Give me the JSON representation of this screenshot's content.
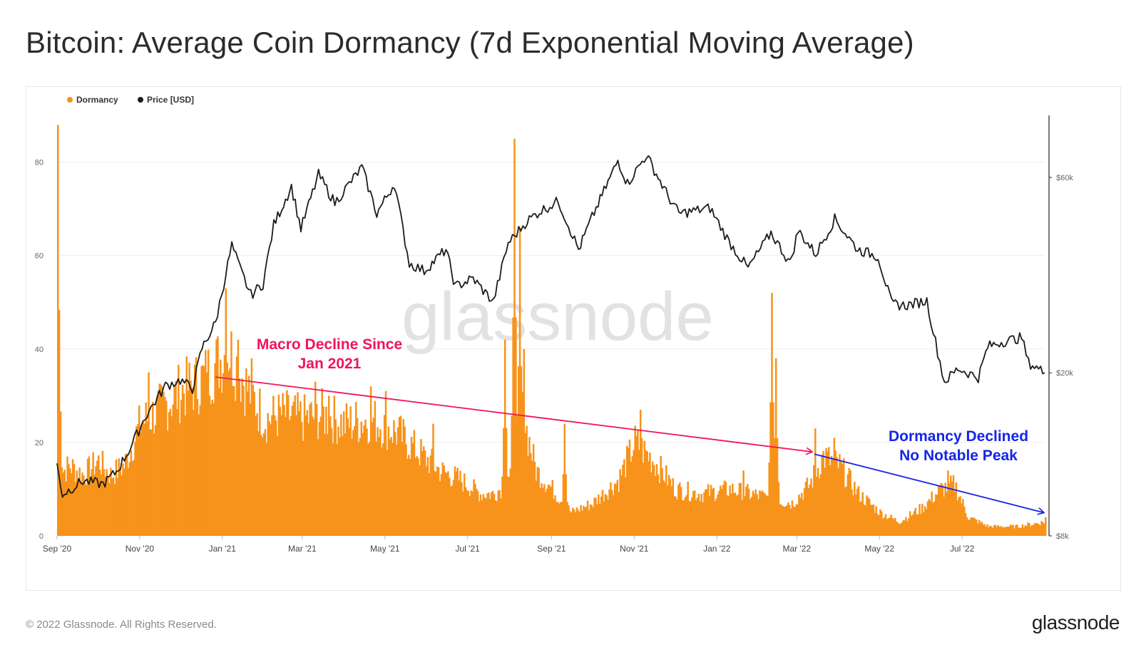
{
  "page": {
    "title": "Bitcoin: Average Coin Dormancy (7d Exponential Moving Average)",
    "copyright": "© 2022 Glassnode. All Rights Reserved.",
    "brand": "glassnode",
    "watermark": "glassnode"
  },
  "colors": {
    "dormancy": "#F7931A",
    "price": "#1c1c1c",
    "annotation_red": "#F0145A",
    "annotation_blue": "#1525E8",
    "grid": "#eeeeee",
    "axis_text": "#666666",
    "watermark": "#e2e2e2"
  },
  "chart_data": {
    "type": "bar",
    "legend": [
      {
        "name": "Dormancy",
        "color": "#F7931A"
      },
      {
        "name": "Price [USD]",
        "color": "#1c1c1c"
      }
    ],
    "legend_position": "top-left",
    "x_ticks": [
      "Sep '20",
      "Nov '20",
      "Jan '21",
      "Mar '21",
      "May '21",
      "Jul '21",
      "Sep '21",
      "Nov '21",
      "Jan '22",
      "Mar '22",
      "May '22",
      "Jul '22"
    ],
    "x_range": [
      "2020-09-01",
      "2022-08-31"
    ],
    "y_left": {
      "label": "",
      "ticks": [
        "0",
        "20",
        "40",
        "60",
        "80"
      ],
      "range": [
        0,
        90
      ]
    },
    "y_right": {
      "label": "",
      "scale": "log",
      "ticks": [
        "$8k",
        "$20k",
        "$60k"
      ],
      "tick_values": [
        8000,
        20000,
        60000
      ],
      "range": [
        8000,
        85000
      ]
    },
    "grid": true,
    "series": [
      {
        "name": "Dormancy",
        "axis": "left",
        "kind": "bar",
        "anchors": [
          [
            "2020-09-01",
            13
          ],
          [
            "2020-09-10",
            15
          ],
          [
            "2020-09-20",
            13
          ],
          [
            "2020-10-01",
            16
          ],
          [
            "2020-10-10",
            13
          ],
          [
            "2020-10-20",
            15
          ],
          [
            "2020-11-01",
            24
          ],
          [
            "2020-11-15",
            27
          ],
          [
            "2020-12-01",
            31
          ],
          [
            "2020-12-15",
            33
          ],
          [
            "2020-12-25",
            36
          ],
          [
            "2021-01-05",
            40
          ],
          [
            "2021-01-20",
            31
          ],
          [
            "2021-02-01",
            25
          ],
          [
            "2021-02-15",
            26
          ],
          [
            "2021-03-01",
            25
          ],
          [
            "2021-03-15",
            26
          ],
          [
            "2021-04-01",
            24
          ],
          [
            "2021-04-20",
            25
          ],
          [
            "2021-05-10",
            22
          ],
          [
            "2021-05-25",
            18
          ],
          [
            "2021-06-10",
            14
          ],
          [
            "2021-06-25",
            12
          ],
          [
            "2021-07-10",
            9
          ],
          [
            "2021-07-20",
            9
          ],
          [
            "2021-08-01",
            12
          ],
          [
            "2021-08-10",
            26
          ],
          [
            "2021-08-20",
            14
          ],
          [
            "2021-09-01",
            10
          ],
          [
            "2021-09-15",
            5
          ],
          [
            "2021-10-01",
            7
          ],
          [
            "2021-10-20",
            12
          ],
          [
            "2021-11-01",
            20
          ],
          [
            "2021-11-15",
            16
          ],
          [
            "2021-12-01",
            10
          ],
          [
            "2021-12-20",
            9
          ],
          [
            "2022-01-10",
            10
          ],
          [
            "2022-01-25",
            9
          ],
          [
            "2022-02-10",
            8
          ],
          [
            "2022-02-25",
            7
          ],
          [
            "2022-03-10",
            11
          ],
          [
            "2022-03-20",
            17
          ],
          [
            "2022-04-01",
            15
          ],
          [
            "2022-04-15",
            9
          ],
          [
            "2022-05-01",
            5
          ],
          [
            "2022-05-15",
            3
          ],
          [
            "2022-06-01",
            6
          ],
          [
            "2022-06-15",
            10
          ],
          [
            "2022-06-25",
            11
          ],
          [
            "2022-07-05",
            4
          ],
          [
            "2022-07-20",
            2
          ],
          [
            "2022-08-10",
            2
          ],
          [
            "2022-08-31",
            3
          ]
        ],
        "spikes": [
          [
            "2020-09-01",
            88
          ],
          [
            "2020-11-07",
            35
          ],
          [
            "2020-12-05",
            34
          ],
          [
            "2020-12-20",
            35
          ],
          [
            "2021-01-03",
            53
          ],
          [
            "2021-01-12",
            42
          ],
          [
            "2021-01-22",
            38
          ],
          [
            "2021-03-10",
            33
          ],
          [
            "2021-03-20",
            30
          ],
          [
            "2021-04-20",
            32
          ],
          [
            "2021-05-01",
            31
          ],
          [
            "2021-06-05",
            24
          ],
          [
            "2021-07-28",
            42
          ],
          [
            "2021-08-04",
            85
          ],
          [
            "2021-08-08",
            66
          ],
          [
            "2021-08-11",
            40
          ],
          [
            "2021-09-10",
            24
          ],
          [
            "2021-11-05",
            27
          ],
          [
            "2022-01-20",
            14
          ],
          [
            "2022-02-10",
            52
          ],
          [
            "2022-02-13",
            38
          ],
          [
            "2022-03-14",
            23
          ],
          [
            "2022-03-28",
            21
          ],
          [
            "2022-06-20",
            14
          ],
          [
            "2022-08-31",
            4
          ]
        ]
      },
      {
        "name": "Price [USD]",
        "axis": "right",
        "kind": "line",
        "points": [
          [
            "2020-09-01",
            11900
          ],
          [
            "2020-09-05",
            10100
          ],
          [
            "2020-09-20",
            10900
          ],
          [
            "2020-10-05",
            10700
          ],
          [
            "2020-10-15",
            11500
          ],
          [
            "2020-10-25",
            13100
          ],
          [
            "2020-11-05",
            15600
          ],
          [
            "2020-11-20",
            18600
          ],
          [
            "2020-12-01",
            19200
          ],
          [
            "2020-12-10",
            18300
          ],
          [
            "2020-12-17",
            23000
          ],
          [
            "2020-12-27",
            26500
          ],
          [
            "2021-01-08",
            41000
          ],
          [
            "2021-01-14",
            36000
          ],
          [
            "2021-01-22",
            31000
          ],
          [
            "2021-01-31",
            33000
          ],
          [
            "2021-02-08",
            46000
          ],
          [
            "2021-02-21",
            57000
          ],
          [
            "2021-02-28",
            45000
          ],
          [
            "2021-03-13",
            61000
          ],
          [
            "2021-03-25",
            52000
          ],
          [
            "2021-04-14",
            63500
          ],
          [
            "2021-04-25",
            49000
          ],
          [
            "2021-05-08",
            58000
          ],
          [
            "2021-05-19",
            37000
          ],
          [
            "2021-05-30",
            35500
          ],
          [
            "2021-06-15",
            40000
          ],
          [
            "2021-06-22",
            32500
          ],
          [
            "2021-07-05",
            34000
          ],
          [
            "2021-07-20",
            29800
          ],
          [
            "2021-07-31",
            41500
          ],
          [
            "2021-08-14",
            47000
          ],
          [
            "2021-08-23",
            49500
          ],
          [
            "2021-09-06",
            52500
          ],
          [
            "2021-09-21",
            40000
          ],
          [
            "2021-10-01",
            48000
          ],
          [
            "2021-10-20",
            66000
          ],
          [
            "2021-10-27",
            58000
          ],
          [
            "2021-11-10",
            68000
          ],
          [
            "2021-11-26",
            54000
          ],
          [
            "2021-12-04",
            49000
          ],
          [
            "2021-12-27",
            50500
          ],
          [
            "2022-01-10",
            41800
          ],
          [
            "2022-01-24",
            36000
          ],
          [
            "2022-02-10",
            44000
          ],
          [
            "2022-02-24",
            37000
          ],
          [
            "2022-03-02",
            44500
          ],
          [
            "2022-03-15",
            39000
          ],
          [
            "2022-03-29",
            47500
          ],
          [
            "2022-04-15",
            40000
          ],
          [
            "2022-04-30",
            38500
          ],
          [
            "2022-05-10",
            29500
          ],
          [
            "2022-05-20",
            29200
          ],
          [
            "2022-06-05",
            30000
          ],
          [
            "2022-06-13",
            22500
          ],
          [
            "2022-06-18",
            19000
          ],
          [
            "2022-06-28",
            20500
          ],
          [
            "2022-07-13",
            19500
          ],
          [
            "2022-07-20",
            23200
          ],
          [
            "2022-07-30",
            23800
          ],
          [
            "2022-08-14",
            24400
          ],
          [
            "2022-08-19",
            21200
          ],
          [
            "2022-08-31",
            20000
          ]
        ]
      }
    ],
    "annotations": [
      {
        "text": [
          "Macro Decline Since",
          "Jan 2021"
        ],
        "color": "#F0145A",
        "arrow": {
          "from": [
            "2020-12-27",
            34
          ],
          "to": [
            "2022-03-12",
            18
          ]
        }
      },
      {
        "text": [
          "Dormancy Declined",
          "No Notable Peak"
        ],
        "color": "#1525E8",
        "arrow": {
          "from": [
            "2022-03-14",
            17.5
          ],
          "to": [
            "2022-08-30",
            5
          ]
        }
      }
    ]
  }
}
